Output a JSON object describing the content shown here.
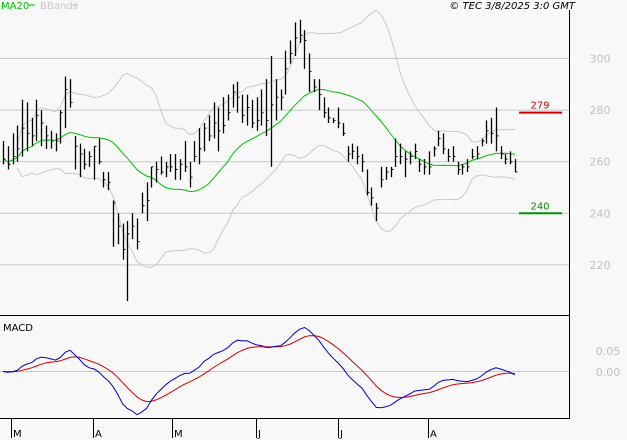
{
  "header": {
    "legend": [
      {
        "label": "MA20",
        "color": "#00c000"
      },
      {
        "label": "BBands",
        "color": "#c8c8c8"
      }
    ],
    "copyright": "© TEC 3/8/2025 3:0 GMT"
  },
  "chart_data": [
    {
      "type": "ohlc-bar",
      "title": "",
      "yticks": [
        "300",
        "280",
        "260",
        "240",
        "220"
      ],
      "ytick_values": [
        300,
        280,
        260,
        240,
        220
      ],
      "ylim": [
        200,
        323
      ],
      "grid": true,
      "xtick_labels": [
        "M",
        "A",
        "M",
        "J",
        "J",
        "A"
      ],
      "overlays": [
        "MA20",
        "BBands"
      ],
      "resistance": {
        "value": 279,
        "label": "279",
        "color": "#d00000"
      },
      "support": {
        "value": 240,
        "label": "240",
        "color": "#009000"
      },
      "bars_hlc": [
        [
          268,
          259,
          261
        ],
        [
          266,
          257,
          259
        ],
        [
          271,
          259,
          262
        ],
        [
          274,
          260,
          265
        ],
        [
          284,
          262,
          273
        ],
        [
          283,
          264,
          271
        ],
        [
          277,
          266,
          270
        ],
        [
          284,
          268,
          278
        ],
        [
          280,
          266,
          275
        ],
        [
          274,
          265,
          270
        ],
        [
          272,
          265,
          268
        ],
        [
          271,
          264,
          268
        ],
        [
          280,
          267,
          279
        ],
        [
          293,
          273,
          288
        ],
        [
          292,
          281,
          283
        ],
        [
          270,
          257,
          266
        ],
        [
          267,
          254,
          263
        ],
        [
          265,
          257,
          259
        ],
        [
          264,
          258,
          262
        ],
        [
          266,
          253,
          266
        ],
        [
          269,
          259,
          260
        ],
        [
          256,
          250,
          253
        ],
        [
          256,
          249,
          252
        ],
        [
          245,
          227,
          244
        ],
        [
          240,
          228,
          235
        ],
        [
          236,
          222,
          226
        ],
        [
          237,
          206,
          232
        ],
        [
          240,
          230,
          235
        ],
        [
          238,
          226,
          229
        ],
        [
          248,
          240,
          243
        ],
        [
          252,
          237,
          245
        ],
        [
          258,
          250,
          258
        ],
        [
          260,
          252,
          257
        ],
        [
          262,
          255,
          256
        ],
        [
          260,
          254,
          258
        ],
        [
          263,
          256,
          258
        ],
        [
          263,
          253,
          257
        ],
        [
          261,
          253,
          259
        ],
        [
          268,
          256,
          258
        ],
        [
          260,
          250,
          254
        ],
        [
          268,
          260,
          262
        ],
        [
          273,
          259,
          265
        ],
        [
          275,
          264,
          273
        ],
        [
          278,
          268,
          270
        ],
        [
          283,
          269,
          275
        ],
        [
          281,
          264,
          272
        ],
        [
          285,
          271,
          274
        ],
        [
          286,
          276,
          279
        ],
        [
          290,
          281,
          287
        ],
        [
          291,
          279,
          285
        ],
        [
          286,
          275,
          278
        ],
        [
          286,
          274,
          281
        ],
        [
          284,
          273,
          275
        ],
        [
          285,
          272,
          276
        ],
        [
          288,
          274,
          279
        ],
        [
          292,
          270,
          276
        ],
        [
          301,
          258,
          282
        ],
        [
          292,
          276,
          285
        ],
        [
          288,
          280,
          285
        ],
        [
          303,
          286,
          296
        ],
        [
          307,
          298,
          302
        ],
        [
          314,
          301,
          308
        ],
        [
          315,
          306,
          309
        ],
        [
          311,
          296,
          307
        ],
        [
          302,
          287,
          295
        ],
        [
          292,
          287,
          289
        ],
        [
          292,
          280,
          286
        ],
        [
          285,
          277,
          279
        ],
        [
          281,
          275,
          277
        ],
        [
          277,
          275,
          276
        ],
        [
          281,
          273,
          275
        ],
        [
          275,
          270,
          271
        ],
        [
          266,
          260,
          263
        ],
        [
          267,
          261,
          264
        ],
        [
          266,
          259,
          262
        ],
        [
          263,
          256,
          260
        ],
        [
          257,
          247,
          248
        ],
        [
          250,
          243,
          246
        ],
        [
          244,
          237,
          242
        ],
        [
          258,
          250,
          253
        ],
        [
          258,
          253,
          256
        ],
        [
          258,
          254,
          257
        ],
        [
          269,
          258,
          262
        ],
        [
          267,
          259,
          262
        ],
        [
          264,
          254,
          261
        ],
        [
          264,
          259,
          262
        ],
        [
          267,
          261,
          264
        ],
        [
          261,
          256,
          259
        ],
        [
          261,
          255,
          258
        ],
        [
          264,
          255,
          258
        ],
        [
          266,
          262,
          265
        ],
        [
          272,
          266,
          269
        ],
        [
          271,
          263,
          265
        ],
        [
          265,
          260,
          262
        ],
        [
          266,
          260,
          262
        ],
        [
          260,
          255,
          257
        ],
        [
          259,
          255,
          258
        ],
        [
          261,
          256,
          258
        ],
        [
          265,
          261,
          262
        ],
        [
          266,
          261,
          263
        ],
        [
          269,
          266,
          268
        ],
        [
          276,
          267,
          272
        ],
        [
          277,
          267,
          271
        ],
        [
          281,
          264,
          270
        ],
        [
          266,
          261,
          263
        ],
        [
          263,
          259,
          261
        ],
        [
          264,
          259,
          260
        ],
        [
          261,
          256,
          256
        ]
      ]
    },
    {
      "type": "line",
      "title": "MACD",
      "yticks": [
        "0.05",
        "0.00"
      ],
      "ytick_values": [
        0.05,
        0.0
      ],
      "series_colors": {
        "macd": "#0000d0",
        "signal": "#d00000"
      },
      "zero_line": true
    }
  ]
}
